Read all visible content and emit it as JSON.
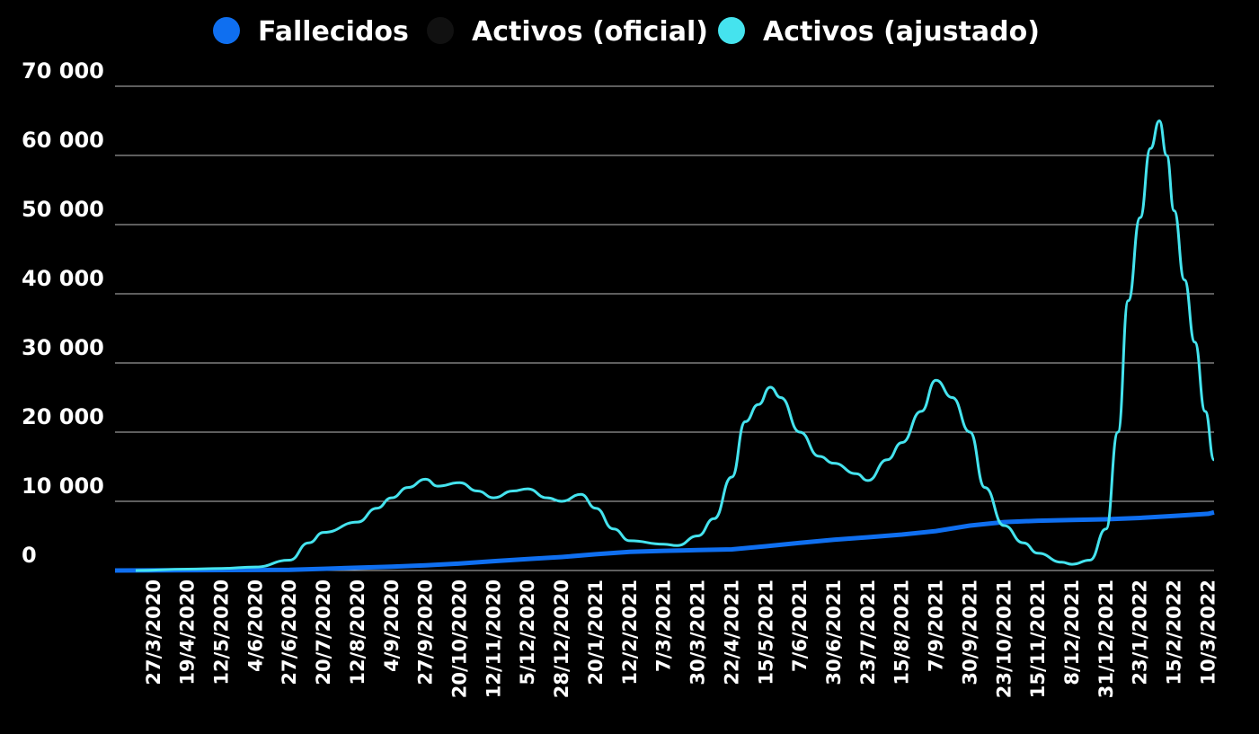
{
  "chart_data": {
    "type": "line",
    "legend_position": "top-center",
    "grid": true,
    "ylim": [
      0,
      70000
    ],
    "yticks": [
      0,
      10000,
      20000,
      30000,
      40000,
      50000,
      60000,
      70000
    ],
    "ytick_labels": [
      "0",
      "10 000",
      "20 000",
      "30 000",
      "40 000",
      "50 000",
      "60 000",
      "70 000"
    ],
    "x_start": "2020-03-01",
    "x_end": "2022-03-14",
    "xtick_dates": [
      "2020-03-27",
      "2020-04-19",
      "2020-05-12",
      "2020-06-04",
      "2020-06-27",
      "2020-07-20",
      "2020-08-12",
      "2020-09-04",
      "2020-09-27",
      "2020-10-20",
      "2020-11-12",
      "2020-12-05",
      "2020-12-28",
      "2021-01-20",
      "2021-02-12",
      "2021-03-07",
      "2021-03-30",
      "2021-04-22",
      "2021-05-15",
      "2021-06-07",
      "2021-06-30",
      "2021-07-23",
      "2021-08-15",
      "2021-09-07",
      "2021-09-30",
      "2021-10-23",
      "2021-11-15",
      "2021-12-08",
      "2021-12-31",
      "2022-01-23",
      "2022-02-15",
      "2022-03-10"
    ],
    "xtick_labels": [
      "27/3/2020",
      "19/4/2020",
      "12/5/2020",
      "4/6/2020",
      "27/6/2020",
      "20/7/2020",
      "12/8/2020",
      "4/9/2020",
      "27/9/2020",
      "20/10/2020",
      "12/11/2020",
      "5/12/2020",
      "28/12/2020",
      "20/1/2021",
      "12/2/2021",
      "7/3/2021",
      "30/3/2021",
      "22/4/2021",
      "15/5/2021",
      "7/6/2021",
      "30/6/2021",
      "23/7/2021",
      "15/8/2021",
      "7/9/2021",
      "30/9/2021",
      "23/10/2021",
      "15/11/2021",
      "8/12/2021",
      "31/12/2021",
      "23/1/2022",
      "15/2/2022",
      "10/3/2022"
    ],
    "series": [
      {
        "name": "Fallecidos",
        "color": "#0f6ff0",
        "points": [
          [
            "2020-03-01",
            0
          ],
          [
            "2020-06-27",
            100
          ],
          [
            "2020-07-20",
            250
          ],
          [
            "2020-08-12",
            400
          ],
          [
            "2020-09-04",
            550
          ],
          [
            "2020-09-27",
            750
          ],
          [
            "2020-10-20",
            1000
          ],
          [
            "2020-11-12",
            1350
          ],
          [
            "2020-12-05",
            1650
          ],
          [
            "2020-12-28",
            1950
          ],
          [
            "2021-01-20",
            2350
          ],
          [
            "2021-02-12",
            2700
          ],
          [
            "2021-03-07",
            2850
          ],
          [
            "2021-03-30",
            2950
          ],
          [
            "2021-04-22",
            3050
          ],
          [
            "2021-05-15",
            3500
          ],
          [
            "2021-06-07",
            4000
          ],
          [
            "2021-06-30",
            4450
          ],
          [
            "2021-07-23",
            4800
          ],
          [
            "2021-08-15",
            5200
          ],
          [
            "2021-09-07",
            5700
          ],
          [
            "2021-09-30",
            6500
          ],
          [
            "2021-10-23",
            7000
          ],
          [
            "2021-11-15",
            7200
          ],
          [
            "2021-12-08",
            7300
          ],
          [
            "2021-12-31",
            7400
          ],
          [
            "2022-01-23",
            7600
          ],
          [
            "2022-02-15",
            7900
          ],
          [
            "2022-03-10",
            8200
          ],
          [
            "2022-03-14",
            8400
          ]
        ]
      },
      {
        "name": "Activos (oficial)",
        "color": "#111111",
        "points": []
      },
      {
        "name": "Activos (ajustado)",
        "color": "#45e3ee",
        "points": [
          [
            "2020-03-15",
            0
          ],
          [
            "2020-04-19",
            200
          ],
          [
            "2020-05-12",
            300
          ],
          [
            "2020-06-04",
            500
          ],
          [
            "2020-06-27",
            1500
          ],
          [
            "2020-07-10",
            4000
          ],
          [
            "2020-07-20",
            5500
          ],
          [
            "2020-08-12",
            7000
          ],
          [
            "2020-08-25",
            9000
          ],
          [
            "2020-09-04",
            10500
          ],
          [
            "2020-09-15",
            12000
          ],
          [
            "2020-09-27",
            13200
          ],
          [
            "2020-10-05",
            12200
          ],
          [
            "2020-10-20",
            12700
          ],
          [
            "2020-11-01",
            11500
          ],
          [
            "2020-11-12",
            10500
          ],
          [
            "2020-11-25",
            11500
          ],
          [
            "2020-12-05",
            11800
          ],
          [
            "2020-12-18",
            10500
          ],
          [
            "2020-12-28",
            10000
          ],
          [
            "2021-01-10",
            11000
          ],
          [
            "2021-01-20",
            9000
          ],
          [
            "2021-02-01",
            6000
          ],
          [
            "2021-02-12",
            4300
          ],
          [
            "2021-03-07",
            3800
          ],
          [
            "2021-03-16",
            3600
          ],
          [
            "2021-03-30",
            5000
          ],
          [
            "2021-04-10",
            7500
          ],
          [
            "2021-04-22",
            13500
          ],
          [
            "2021-05-01",
            21500
          ],
          [
            "2021-05-10",
            24000
          ],
          [
            "2021-05-18",
            26500
          ],
          [
            "2021-05-25",
            25000
          ],
          [
            "2021-06-07",
            20000
          ],
          [
            "2021-06-20",
            16500
          ],
          [
            "2021-06-30",
            15500
          ],
          [
            "2021-07-15",
            14000
          ],
          [
            "2021-07-23",
            13000
          ],
          [
            "2021-08-05",
            16000
          ],
          [
            "2021-08-15",
            18500
          ],
          [
            "2021-08-28",
            23000
          ],
          [
            "2021-09-07",
            27500
          ],
          [
            "2021-09-18",
            25000
          ],
          [
            "2021-09-30",
            20000
          ],
          [
            "2021-10-10",
            12000
          ],
          [
            "2021-10-23",
            6500
          ],
          [
            "2021-11-05",
            4000
          ],
          [
            "2021-11-15",
            2500
          ],
          [
            "2021-12-01",
            1200
          ],
          [
            "2021-12-08",
            900
          ],
          [
            "2021-12-20",
            1500
          ],
          [
            "2021-12-31",
            6000
          ],
          [
            "2022-01-08",
            20000
          ],
          [
            "2022-01-15",
            39000
          ],
          [
            "2022-01-23",
            51000
          ],
          [
            "2022-01-30",
            61000
          ],
          [
            "2022-02-05",
            65000
          ],
          [
            "2022-02-10",
            60000
          ],
          [
            "2022-02-15",
            52000
          ],
          [
            "2022-02-22",
            42000
          ],
          [
            "2022-03-01",
            33000
          ],
          [
            "2022-03-08",
            23000
          ],
          [
            "2022-03-14",
            16000
          ]
        ]
      }
    ]
  }
}
